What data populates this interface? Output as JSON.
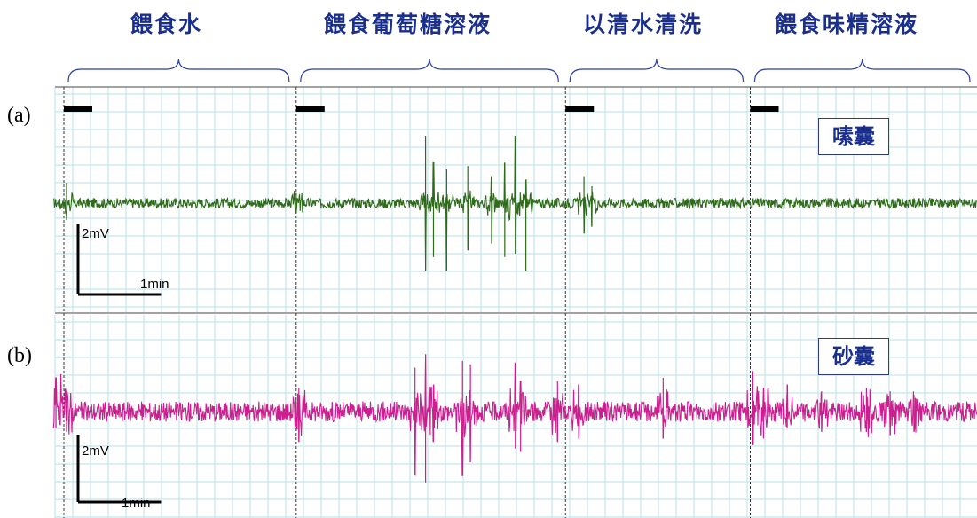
{
  "phases": [
    "餵食水",
    "餵食葡萄糖溶液",
    "以清水清洗",
    "餵食味精溶液"
  ],
  "panels": [
    {
      "letter": "(a)",
      "organ": "嗉囊",
      "color": "#2f6b1a"
    },
    {
      "letter": "(b)",
      "organ": "砂囊",
      "color": "#cc1f8f"
    }
  ],
  "scale_bar": {
    "voltage_label": "2mV",
    "time_label": "1min"
  },
  "chart_data": {
    "type": "line",
    "xlabel": "",
    "ylabel": "",
    "x_unit": "min",
    "y_unit": "mV",
    "phase_boundaries_min": [
      0,
      4.4,
      9.5,
      13.0
    ],
    "x_range_min": [
      -0.2,
      17.3
    ],
    "series": [
      {
        "panel": "a",
        "baseline_mV": 0,
        "noise_mV": 0.15,
        "spikes": [
          {
            "t": 0.05,
            "up": 0.6,
            "down": -0.5
          },
          {
            "t": 4.4,
            "up": 0.3,
            "down": -0.3
          },
          {
            "t": 6.85,
            "up": 2.0,
            "down": -2.0
          },
          {
            "t": 7.0,
            "up": 1.2,
            "down": -1.6
          },
          {
            "t": 7.25,
            "up": 1.0,
            "down": -2.0
          },
          {
            "t": 7.65,
            "up": 1.1,
            "down": -1.4
          },
          {
            "t": 8.1,
            "up": 0.8,
            "down": -1.2
          },
          {
            "t": 8.35,
            "up": 1.2,
            "down": -1.6
          },
          {
            "t": 8.55,
            "up": 2.0,
            "down": -1.5
          },
          {
            "t": 8.75,
            "up": 0.7,
            "down": -2.0
          },
          {
            "t": 9.85,
            "up": 0.8,
            "down": -0.9
          },
          {
            "t": 10.0,
            "up": 0.5,
            "down": -0.7
          }
        ]
      },
      {
        "panel": "b",
        "baseline_mV": 0,
        "noise_mV": 0.3,
        "spikes": [
          {
            "t": -0.15,
            "up": 1.0,
            "down": -0.5
          },
          {
            "t": 0.05,
            "up": 0.6,
            "down": -0.6
          },
          {
            "t": 4.45,
            "up": 0.7,
            "down": -0.9
          },
          {
            "t": 6.65,
            "up": 1.3,
            "down": -1.9
          },
          {
            "t": 6.85,
            "up": 1.7,
            "down": -2.1
          },
          {
            "t": 7.0,
            "up": 0.8,
            "down": -0.9
          },
          {
            "t": 7.55,
            "up": 1.5,
            "down": -1.9
          },
          {
            "t": 7.7,
            "up": 1.4,
            "down": -1.5
          },
          {
            "t": 8.55,
            "up": 1.3,
            "down": -1.1
          },
          {
            "t": 8.65,
            "up": 0.9,
            "down": -1.2
          },
          {
            "t": 9.35,
            "up": 0.9,
            "down": -0.9
          },
          {
            "t": 9.75,
            "up": 0.8,
            "down": -0.8
          },
          {
            "t": 11.35,
            "up": 1.0,
            "down": -0.8
          },
          {
            "t": 13.05,
            "up": 1.2,
            "down": -1.0
          },
          {
            "t": 13.25,
            "up": 0.7,
            "down": -0.8
          },
          {
            "t": 13.7,
            "up": 0.8,
            "down": -0.5
          },
          {
            "t": 14.35,
            "up": 0.6,
            "down": -0.6
          },
          {
            "t": 15.2,
            "up": 0.7,
            "down": -0.6
          },
          {
            "t": 15.65,
            "up": 0.6,
            "down": -0.7
          },
          {
            "t": 16.1,
            "up": 0.5,
            "down": -0.6
          }
        ]
      }
    ]
  }
}
